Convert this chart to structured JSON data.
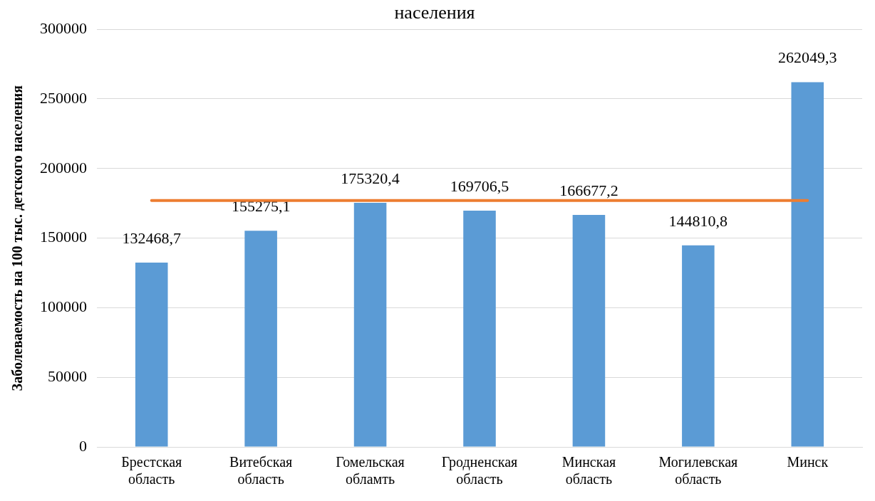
{
  "chart_data": {
    "type": "bar",
    "title": "населения",
    "ylabel": "Заболеваемость на 100 тыс. детского населения",
    "categories": [
      "Брестская область",
      "Витебская область",
      "Гомельская обламть",
      "Гродненская область",
      "Минская область",
      "Могилевская область",
      "Минск"
    ],
    "series": [
      {
        "color": "#5b9bd5",
        "values": [
          132468.7,
          155275.1,
          175320.4,
          169706.5,
          166677.2,
          144810.8,
          262049.3
        ],
        "value_labels": [
          "132468,7",
          "155275,1",
          "175320,4",
          "169706,5",
          "166677,2",
          "144810,8",
          "262049,3"
        ]
      },
      {
        "type": "line",
        "color": "#ed7d31",
        "values": [
          177000,
          177000,
          177000,
          177000,
          177000,
          177000,
          177000
        ],
        "marker": "none"
      }
    ],
    "ylim": [
      0,
      300000
    ],
    "yticks": [
      0,
      50000,
      100000,
      150000,
      200000,
      250000,
      300000
    ],
    "grid": "y",
    "legend": false
  }
}
